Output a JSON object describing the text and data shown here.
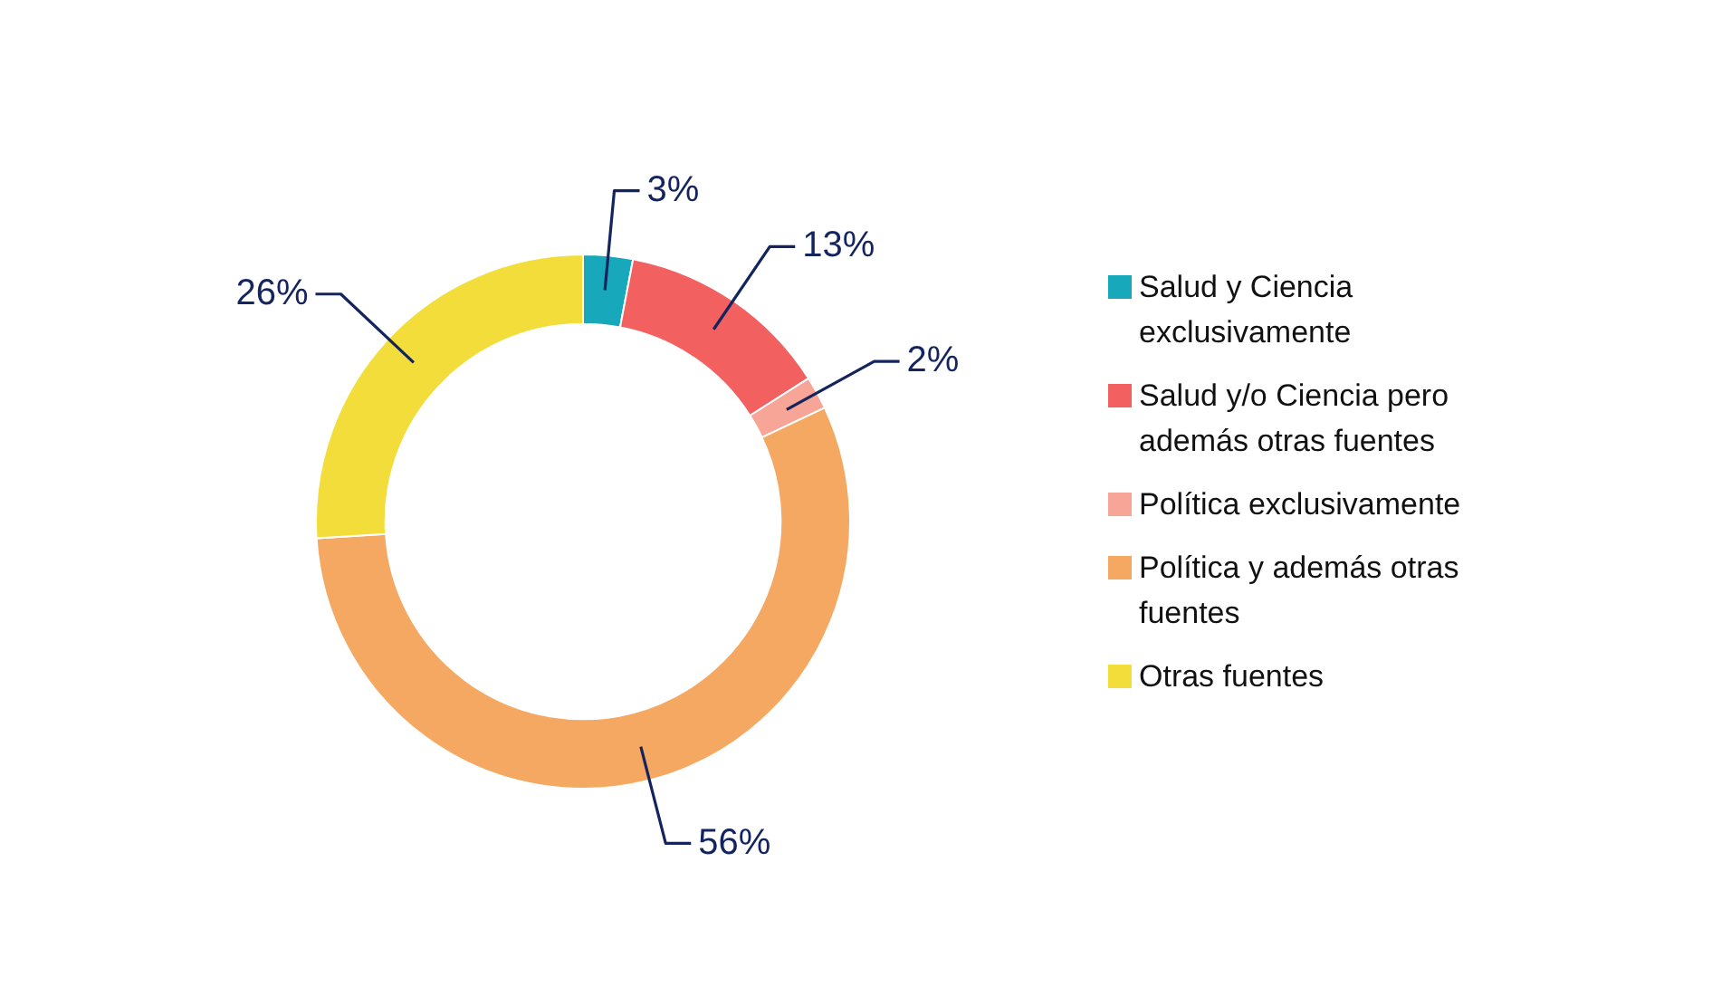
{
  "chart_data": {
    "type": "donut",
    "categories": [
      "Salud y Ciencia exclusivamente",
      "Salud y/o Ciencia pero además otras fuentes",
      "Política exclusivamente",
      "Política y además otras fuentes",
      "Otras fuentes"
    ],
    "values": [
      3,
      13,
      2,
      56,
      26
    ],
    "colors": [
      "#17a9bb",
      "#f26060",
      "#f7a597",
      "#f5a862",
      "#f2dd3a"
    ],
    "value_labels": [
      "3%",
      "13%",
      "2%",
      "56%",
      "26%"
    ],
    "legend": "right"
  }
}
